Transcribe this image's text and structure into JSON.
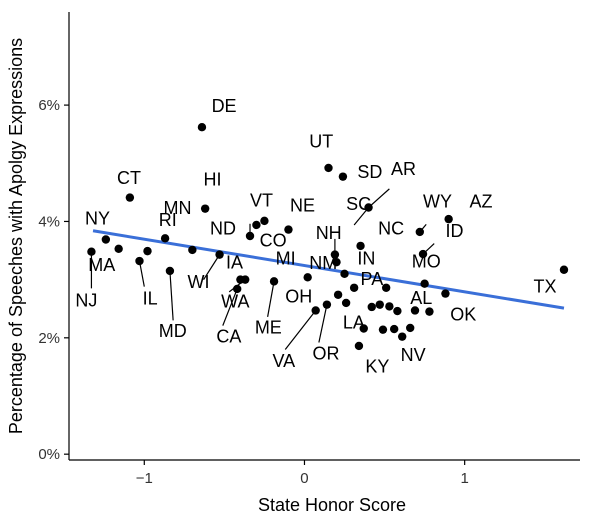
{
  "chart_data": {
    "type": "scatter",
    "title": "",
    "xlabel": "State Honor Score",
    "ylabel": "Percentage of Speeches with Apolgy Expressions",
    "xlim": [
      -1.47,
      1.72
    ],
    "ylim": [
      -0.1,
      7.6
    ],
    "x_ticks": [
      -1,
      0,
      1
    ],
    "x_tick_labels": [
      "−1",
      "0",
      "1"
    ],
    "y_ticks": [
      0,
      2,
      4,
      6
    ],
    "y_tick_labels": [
      "0%",
      "2%",
      "4%",
      "6%"
    ],
    "grid": false,
    "trend_line": {
      "x": [
        -1.32,
        1.62
      ],
      "y": [
        3.84,
        2.51
      ],
      "color": "#3a6fd8"
    },
    "points": [
      {
        "x": -1.09,
        "y": 4.41
      },
      {
        "x": -1.33,
        "y": 3.48
      },
      {
        "x": -1.24,
        "y": 3.69
      },
      {
        "x": -1.16,
        "y": 3.53
      },
      {
        "x": -1.03,
        "y": 3.32
      },
      {
        "x": -0.98,
        "y": 3.49
      },
      {
        "x": -0.87,
        "y": 3.71
      },
      {
        "x": -0.84,
        "y": 3.15
      },
      {
        "x": -0.7,
        "y": 3.51
      },
      {
        "x": -0.64,
        "y": 5.62
      },
      {
        "x": -0.62,
        "y": 4.22
      },
      {
        "x": -0.53,
        "y": 3.43
      },
      {
        "x": -0.4,
        "y": 3.0
      },
      {
        "x": -0.37,
        "y": 3.0
      },
      {
        "x": -0.42,
        "y": 2.84
      },
      {
        "x": -0.34,
        "y": 3.75
      },
      {
        "x": -0.3,
        "y": 3.94
      },
      {
        "x": -0.25,
        "y": 4.01
      },
      {
        "x": -0.19,
        "y": 2.97
      },
      {
        "x": -0.1,
        "y": 3.86
      },
      {
        "x": 0.02,
        "y": 3.04
      },
      {
        "x": 0.07,
        "y": 2.47
      },
      {
        "x": 0.14,
        "y": 2.57
      },
      {
        "x": 0.15,
        "y": 4.92
      },
      {
        "x": 0.19,
        "y": 3.43
      },
      {
        "x": 0.2,
        "y": 3.3
      },
      {
        "x": 0.21,
        "y": 2.74
      },
      {
        "x": 0.24,
        "y": 4.77
      },
      {
        "x": 0.25,
        "y": 3.1
      },
      {
        "x": 0.26,
        "y": 2.6
      },
      {
        "x": 0.31,
        "y": 2.86
      },
      {
        "x": 0.35,
        "y": 3.58
      },
      {
        "x": 0.37,
        "y": 2.16
      },
      {
        "x": 0.34,
        "y": 1.86
      },
      {
        "x": 0.4,
        "y": 4.24
      },
      {
        "x": 0.42,
        "y": 2.53
      },
      {
        "x": 0.47,
        "y": 2.57
      },
      {
        "x": 0.49,
        "y": 2.14
      },
      {
        "x": 0.51,
        "y": 2.86
      },
      {
        "x": 0.53,
        "y": 2.54
      },
      {
        "x": 0.56,
        "y": 2.15
      },
      {
        "x": 0.58,
        "y": 2.46
      },
      {
        "x": 0.61,
        "y": 2.02
      },
      {
        "x": 0.66,
        "y": 2.17
      },
      {
        "x": 0.69,
        "y": 2.47
      },
      {
        "x": 0.72,
        "y": 3.82
      },
      {
        "x": 0.74,
        "y": 3.44
      },
      {
        "x": 0.75,
        "y": 2.93
      },
      {
        "x": 0.78,
        "y": 2.45
      },
      {
        "x": 0.88,
        "y": 2.76
      },
      {
        "x": 0.9,
        "y": 4.04
      },
      {
        "x": 1.62,
        "y": 3.17
      }
    ],
    "labels": [
      {
        "text": "DE",
        "x": -0.58,
        "y": 5.88
      },
      {
        "text": "UT",
        "x": 0.03,
        "y": 5.27
      },
      {
        "text": "SD",
        "x": 0.33,
        "y": 4.75
      },
      {
        "text": "AR",
        "x": 0.54,
        "y": 4.8,
        "to": {
          "x": 0.4,
          "y": 4.24
        }
      },
      {
        "text": "CT",
        "x": -1.17,
        "y": 4.64
      },
      {
        "text": "HI",
        "x": -0.63,
        "y": 4.62
      },
      {
        "text": "AZ",
        "x": 1.03,
        "y": 4.24
      },
      {
        "text": "WY",
        "x": 0.74,
        "y": 4.24
      },
      {
        "text": "VT",
        "x": -0.34,
        "y": 4.26
      },
      {
        "text": "NE",
        "x": -0.09,
        "y": 4.17
      },
      {
        "text": "SC",
        "x": 0.26,
        "y": 4.2
      },
      {
        "text": "MN",
        "x": -0.88,
        "y": 4.13
      },
      {
        "text": "NY",
        "x": -1.37,
        "y": 3.95
      },
      {
        "text": "NC",
        "x": 0.46,
        "y": 3.78
      },
      {
        "text": "ID",
        "x": 0.88,
        "y": 3.73
      },
      {
        "text": "ND",
        "x": -0.59,
        "y": 3.78
      },
      {
        "text": "NH",
        "x": 0.07,
        "y": 3.7
      },
      {
        "text": "CO",
        "x": -0.28,
        "y": 3.57
      },
      {
        "text": "IN",
        "x": 0.33,
        "y": 3.26
      },
      {
        "text": "RI",
        "x": -0.91,
        "y": 3.92
      },
      {
        "text": "MO",
        "x": 0.67,
        "y": 3.21
      },
      {
        "text": "NM",
        "x": 0.03,
        "y": 3.18
      },
      {
        "text": "MA",
        "x": -1.35,
        "y": 3.15
      },
      {
        "text": "IA",
        "x": -0.49,
        "y": 3.19
      },
      {
        "text": "MI",
        "x": -0.18,
        "y": 3.26
      },
      {
        "text": "TX",
        "x": 1.43,
        "y": 2.78
      },
      {
        "text": "WI",
        "x": -0.73,
        "y": 2.86
      },
      {
        "text": "PA",
        "x": 0.35,
        "y": 2.91
      },
      {
        "text": "OH",
        "x": -0.12,
        "y": 2.61
      },
      {
        "text": "AL",
        "x": 0.66,
        "y": 2.58
      },
      {
        "text": "NJ",
        "x": -1.43,
        "y": 2.54
      },
      {
        "text": "IL",
        "x": -1.01,
        "y": 2.57
      },
      {
        "text": "WA",
        "x": -0.52,
        "y": 2.52
      },
      {
        "text": "OK",
        "x": 0.91,
        "y": 2.3
      },
      {
        "text": "LA",
        "x": 0.24,
        "y": 2.16
      },
      {
        "text": "MD",
        "x": -0.91,
        "y": 2.01
      },
      {
        "text": "ME",
        "x": -0.31,
        "y": 2.07
      },
      {
        "text": "CA",
        "x": -0.55,
        "y": 1.92
      },
      {
        "text": "OR",
        "x": 0.05,
        "y": 1.63
      },
      {
        "text": "NV",
        "x": 0.6,
        "y": 1.6
      },
      {
        "text": "VA",
        "x": -0.2,
        "y": 1.5
      },
      {
        "text": "KY",
        "x": 0.38,
        "y": 1.4
      }
    ],
    "leaders": [
      {
        "from": {
          "x": 0.4,
          "y": 4.24
        },
        "to": {
          "x": 0.53,
          "y": 4.56
        }
      },
      {
        "from": {
          "x": -1.33,
          "y": 3.48
        },
        "to": {
          "x": -1.33,
          "y": 2.85
        }
      },
      {
        "from": {
          "x": -1.03,
          "y": 3.32
        },
        "to": {
          "x": -1.0,
          "y": 2.88
        }
      },
      {
        "from": {
          "x": -0.84,
          "y": 3.15
        },
        "to": {
          "x": -0.82,
          "y": 2.3
        }
      },
      {
        "from": {
          "x": -0.53,
          "y": 3.43
        },
        "to": {
          "x": -0.63,
          "y": 3.0
        }
      },
      {
        "from": {
          "x": -0.37,
          "y": 3.0
        },
        "to": {
          "x": -0.47,
          "y": 2.79
        }
      },
      {
        "from": {
          "x": -0.42,
          "y": 2.84
        },
        "to": {
          "x": -0.51,
          "y": 2.21
        }
      },
      {
        "from": {
          "x": -0.19,
          "y": 2.97
        },
        "to": {
          "x": -0.23,
          "y": 2.36
        }
      },
      {
        "from": {
          "x": 0.07,
          "y": 2.47
        },
        "to": {
          "x": -0.12,
          "y": 1.8
        }
      },
      {
        "from": {
          "x": 0.14,
          "y": 2.57
        },
        "to": {
          "x": 0.09,
          "y": 1.92
        }
      },
      {
        "from": {
          "x": 0.19,
          "y": 3.43
        },
        "to": {
          "x": 0.19,
          "y": 3.7
        }
      },
      {
        "from": {
          "x": 0.4,
          "y": 4.24
        },
        "to": {
          "x": 0.31,
          "y": 3.94
        }
      },
      {
        "from": {
          "x": 0.72,
          "y": 3.82
        },
        "to": {
          "x": 0.76,
          "y": 3.95
        }
      },
      {
        "from": {
          "x": 0.74,
          "y": 3.44
        },
        "to": {
          "x": 0.81,
          "y": 3.62
        }
      },
      {
        "from": {
          "x": -0.34,
          "y": 3.75
        },
        "to": {
          "x": -0.34,
          "y": 3.96
        }
      }
    ]
  }
}
